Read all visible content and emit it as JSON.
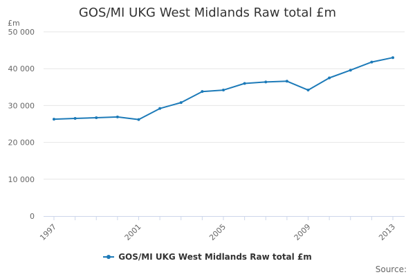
{
  "chart_data": {
    "type": "line",
    "title": "GOS/MI UKG West Midlands Raw total £m",
    "ylabel": "£m",
    "xlabel": "",
    "ylim": [
      0,
      50000
    ],
    "y_ticks": [
      0,
      10000,
      20000,
      30000,
      40000,
      50000
    ],
    "y_tick_labels": [
      "0",
      "10 000",
      "20 000",
      "30 000",
      "40 000",
      "50 000"
    ],
    "x_tick_labels": [
      "1997",
      "2001",
      "2005",
      "2009",
      "2013"
    ],
    "x_tick_values": [
      1997,
      2001,
      2005,
      2009,
      2013
    ],
    "grid": true,
    "legend_position": "bottom",
    "series": [
      {
        "name": "GOS/MI UKG West Midlands Raw total £m",
        "color": "#1c7ab8",
        "x": [
          1997,
          1998,
          1999,
          2000,
          2001,
          2002,
          2003,
          2004,
          2005,
          2006,
          2007,
          2008,
          2009,
          2010,
          2011,
          2012,
          2013
        ],
        "values": [
          26300,
          26500,
          26700,
          26900,
          26200,
          29200,
          30800,
          33800,
          34200,
          36000,
          36400,
          36600,
          34200,
          37500,
          39600,
          41800,
          43000
        ]
      }
    ]
  },
  "source_label": "Source:"
}
